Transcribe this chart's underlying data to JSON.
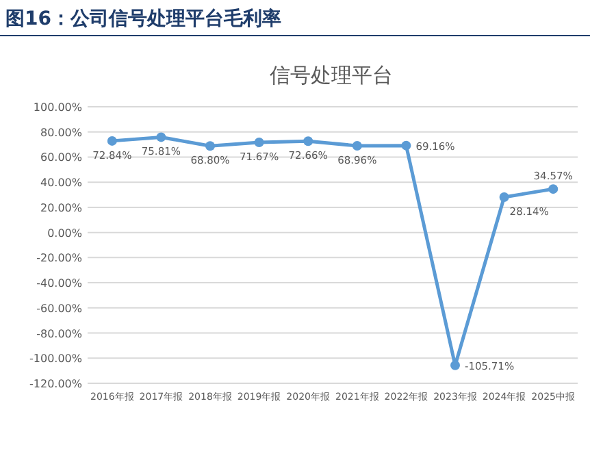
{
  "chart_data": {
    "type": "line",
    "title": "图16：公司信号处理平台毛利率",
    "subtitle": "信号处理平台",
    "categories": [
      "2016年报",
      "2017年报",
      "2018年报",
      "2019年报",
      "2020年报",
      "2021年报",
      "2022年报",
      "2023年报",
      "2024年报",
      "2025中报"
    ],
    "series": [
      {
        "color": "#5b9bd5",
        "values": [
          72.84,
          75.81,
          68.8,
          71.67,
          72.66,
          68.96,
          69.16,
          -105.71,
          28.14,
          34.57
        ],
        "value_labels": [
          "72.84%",
          "75.81%",
          "68.80%",
          "71.67%",
          "72.66%",
          "68.96%",
          "69.16%",
          "-105.71%",
          "28.14%",
          "34.57%"
        ]
      }
    ],
    "ylim": [
      -120,
      100
    ],
    "yticks": [
      {
        "value": -120,
        "label": "-120.00%"
      },
      {
        "value": -100,
        "label": "-100.00%"
      },
      {
        "value": -80,
        "label": "-80.00%"
      },
      {
        "value": -60,
        "label": "-60.00%"
      },
      {
        "value": -40,
        "label": "-40.00%"
      },
      {
        "value": -20,
        "label": "-20.00%"
      },
      {
        "value": 0,
        "label": "0.00%"
      },
      {
        "value": 20,
        "label": "20.00%"
      },
      {
        "value": 40,
        "label": "40.00%"
      },
      {
        "value": 60,
        "label": "60.00%"
      },
      {
        "value": 80,
        "label": "80.00%"
      },
      {
        "value": 100,
        "label": "100.00%"
      }
    ],
    "grid": "y",
    "marker": "circle",
    "line_style": "solid"
  }
}
